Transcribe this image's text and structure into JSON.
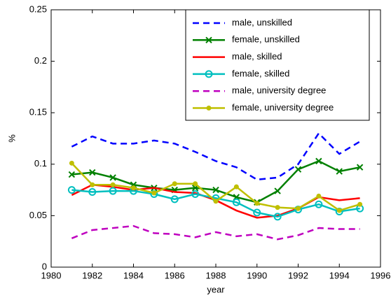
{
  "chart_data": {
    "type": "line",
    "xlabel": "year",
    "ylabel": "%",
    "x": [
      1981,
      1982,
      1983,
      1984,
      1985,
      1986,
      1987,
      1988,
      1989,
      1990,
      1991,
      1992,
      1993,
      1994,
      1995
    ],
    "xlim": [
      1980,
      1996
    ],
    "xticks": [
      1980,
      1982,
      1984,
      1986,
      1988,
      1990,
      1992,
      1994,
      1996
    ],
    "ylim": [
      0,
      0.25
    ],
    "yticks": [
      0,
      0.05,
      0.1,
      0.15,
      0.2,
      0.25
    ],
    "grid": false,
    "legend_position": "upper right",
    "series": [
      {
        "name": "male, unskilled",
        "color": "#0000ff",
        "dashed": true,
        "marker": "none",
        "values": [
          0.117,
          0.127,
          0.12,
          0.12,
          0.123,
          0.12,
          0.112,
          0.103,
          0.097,
          0.085,
          0.087,
          0.1,
          0.13,
          0.11,
          0.122
        ]
      },
      {
        "name": "female, unskilled",
        "color": "#008000",
        "dashed": false,
        "marker": "x",
        "values": [
          0.09,
          0.092,
          0.087,
          0.08,
          0.077,
          0.075,
          0.077,
          0.075,
          0.068,
          0.063,
          0.074,
          0.095,
          0.103,
          0.093,
          0.097
        ]
      },
      {
        "name": "male, skilled",
        "color": "#ff0000",
        "dashed": false,
        "marker": "none",
        "values": [
          0.07,
          0.08,
          0.078,
          0.075,
          0.077,
          0.073,
          0.072,
          0.065,
          0.055,
          0.048,
          0.05,
          0.057,
          0.068,
          0.065,
          0.067
        ]
      },
      {
        "name": "female, skilled",
        "color": "#00bfbf",
        "dashed": false,
        "marker": "o",
        "values": [
          0.075,
          0.073,
          0.074,
          0.074,
          0.071,
          0.066,
          0.071,
          0.067,
          0.063,
          0.053,
          0.049,
          0.056,
          0.061,
          0.054,
          0.057
        ]
      },
      {
        "name": "male, university degree",
        "color": "#bf00bf",
        "dashed": true,
        "marker": "none",
        "values": [
          0.028,
          0.036,
          0.038,
          0.04,
          0.033,
          0.032,
          0.029,
          0.034,
          0.03,
          0.032,
          0.027,
          0.031,
          0.038,
          0.037,
          0.037
        ]
      },
      {
        "name": "female, university degree",
        "color": "#bfbf00",
        "dashed": false,
        "marker": "dot",
        "values": [
          0.101,
          0.08,
          0.08,
          0.077,
          0.072,
          0.081,
          0.081,
          0.064,
          0.078,
          0.062,
          0.058,
          0.057,
          0.069,
          0.055,
          0.061
        ]
      }
    ]
  }
}
